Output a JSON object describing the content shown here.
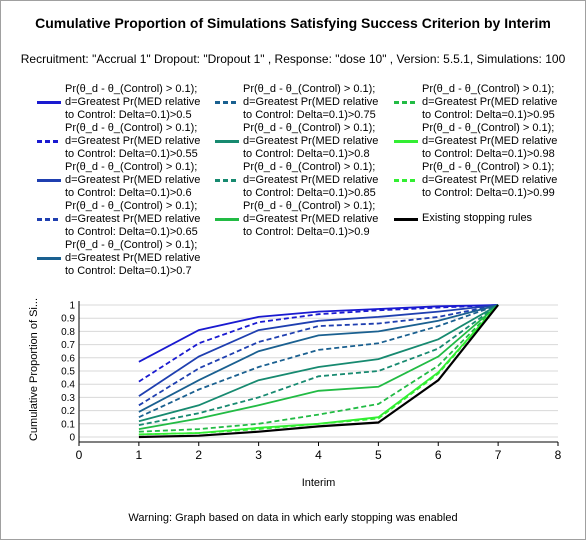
{
  "chart_data": {
    "type": "line",
    "title": "Cumulative Proportion of Simulations Satisfying Success Criterion by Interim",
    "subtitle": "Recruitment: \"Accrual 1\" Dropout: \"Dropout 1\" , Response: \"dose 10\" , Version: 5.5.1, Simulations: 100",
    "xlabel": "Interim",
    "ylabel": "Cumulative Proportion of Si...",
    "xlim": [
      0,
      8
    ],
    "ylim": [
      0,
      1
    ],
    "xticks": [
      "0",
      "1",
      "2",
      "3",
      "4",
      "5",
      "6",
      "7",
      "8"
    ],
    "yticks": [
      "0",
      "0.1",
      "0.2",
      "0.3",
      "0.4",
      "0.5",
      "0.6",
      "0.7",
      "0.8",
      "0.9",
      "1"
    ],
    "grid": "horizontal",
    "legend_position": "top",
    "x": [
      1,
      2,
      3,
      4,
      5,
      6,
      7
    ],
    "series": [
      {
        "name": "Pr(θ_d - θ_(Control) > 0.1);\nd=Greatest Pr(MED relative\nto Control: Delta=0.1)>0.5",
        "color": "#1a1ad0",
        "dash": "solid",
        "values": [
          0.57,
          0.81,
          0.91,
          0.95,
          0.97,
          0.99,
          1.0
        ]
      },
      {
        "name": "Pr(θ_d - θ_(Control) > 0.1);\nd=Greatest Pr(MED relative\nto Control: Delta=0.1)>0.55",
        "color": "#1a1ad0",
        "dash": "dashed",
        "values": [
          0.42,
          0.71,
          0.87,
          0.93,
          0.96,
          0.98,
          1.0
        ]
      },
      {
        "name": "Pr(θ_d - θ_(Control) > 0.1);\nd=Greatest Pr(MED relative\nto Control: Delta=0.1)>0.6",
        "color": "#1f3fb0",
        "dash": "solid",
        "values": [
          0.31,
          0.61,
          0.81,
          0.88,
          0.91,
          0.95,
          1.0
        ]
      },
      {
        "name": "Pr(θ_d - θ_(Control) > 0.1);\nd=Greatest Pr(MED relative\nto Control: Delta=0.1)>0.65",
        "color": "#1f3fb0",
        "dash": "dashed",
        "values": [
          0.24,
          0.52,
          0.72,
          0.84,
          0.86,
          0.91,
          1.0
        ]
      },
      {
        "name": "Pr(θ_d - θ_(Control) > 0.1);\nd=Greatest Pr(MED relative\nto Control: Delta=0.1)>0.7",
        "color": "#1a6090",
        "dash": "solid",
        "values": [
          0.19,
          0.43,
          0.65,
          0.77,
          0.8,
          0.88,
          1.0
        ]
      },
      {
        "name": "Pr(θ_d - θ_(Control) > 0.1);\nd=Greatest Pr(MED relative\nto Control: Delta=0.1)>0.75",
        "color": "#1a6090",
        "dash": "dashed",
        "values": [
          0.15,
          0.36,
          0.53,
          0.66,
          0.71,
          0.84,
          1.0
        ]
      },
      {
        "name": "Pr(θ_d - θ_(Control) > 0.1);\nd=Greatest Pr(MED relative\nto Control: Delta=0.1)>0.8",
        "color": "#178a70",
        "dash": "solid",
        "values": [
          0.12,
          0.24,
          0.43,
          0.53,
          0.59,
          0.74,
          1.0
        ]
      },
      {
        "name": "Pr(θ_d - θ_(Control) > 0.1);\nd=Greatest Pr(MED relative\nto Control: Delta=0.1)>0.85",
        "color": "#178a70",
        "dash": "dashed",
        "values": [
          0.09,
          0.18,
          0.3,
          0.46,
          0.5,
          0.67,
          1.0
        ]
      },
      {
        "name": "Pr(θ_d - θ_(Control) > 0.1);\nd=Greatest Pr(MED relative\nto Control: Delta=0.1)>0.9",
        "color": "#22bb44",
        "dash": "solid",
        "values": [
          0.06,
          0.14,
          0.24,
          0.35,
          0.38,
          0.61,
          1.0
        ]
      },
      {
        "name": "Pr(θ_d - θ_(Control) > 0.1);\nd=Greatest Pr(MED relative\nto Control: Delta=0.1)>0.95",
        "color": "#22bb44",
        "dash": "dashed",
        "values": [
          0.04,
          0.06,
          0.1,
          0.17,
          0.25,
          0.54,
          1.0
        ]
      },
      {
        "name": "Pr(θ_d - θ_(Control) > 0.1);\nd=Greatest Pr(MED relative\nto Control: Delta=0.1)>0.98",
        "color": "#33ee33",
        "dash": "solid",
        "values": [
          0.02,
          0.03,
          0.07,
          0.1,
          0.15,
          0.49,
          1.0
        ]
      },
      {
        "name": "Pr(θ_d - θ_(Control) > 0.1);\nd=Greatest Pr(MED relative\nto Control: Delta=0.1)>0.99",
        "color": "#33ee33",
        "dash": "dashed",
        "values": [
          0.02,
          0.03,
          0.06,
          0.1,
          0.14,
          0.48,
          1.0
        ]
      },
      {
        "name": "Existing stopping rules",
        "color": "#000000",
        "dash": "solid",
        "values": [
          0.0,
          0.01,
          0.04,
          0.08,
          0.11,
          0.43,
          1.0
        ]
      }
    ]
  },
  "footer": {
    "warning": "Warning: Graph based on data in which early stopping was enabled"
  }
}
